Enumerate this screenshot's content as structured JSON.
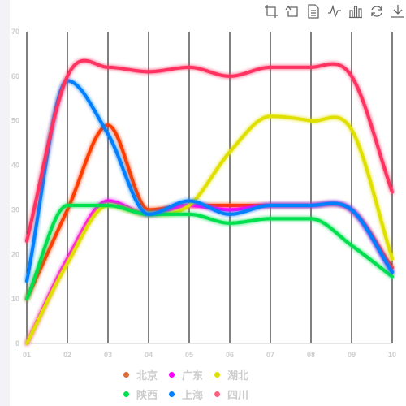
{
  "toolbox": [
    {
      "name": "crop-zoom-icon"
    },
    {
      "name": "zoom-reset-icon"
    },
    {
      "name": "data-view-icon"
    },
    {
      "name": "line-chart-icon"
    },
    {
      "name": "bar-chart-icon"
    },
    {
      "name": "restore-icon"
    },
    {
      "name": "save-image-icon"
    }
  ],
  "chart_data": {
    "type": "line",
    "smooth": true,
    "categories": [
      "01",
      "02",
      "03",
      "04",
      "05",
      "06",
      "07",
      "08",
      "09",
      "10"
    ],
    "ylim": [
      0,
      70
    ],
    "yticks": [
      0,
      10,
      20,
      30,
      40,
      50,
      60,
      70
    ],
    "grid": "vertical",
    "legend_position": "bottom",
    "series": [
      {
        "name": "北京",
        "color": "#ff3c00",
        "values": [
          10,
          30,
          49,
          30,
          31,
          31,
          31,
          31,
          30,
          17
        ]
      },
      {
        "name": "广东",
        "color": "#ff00ff",
        "values": [
          0,
          19,
          32,
          29,
          31,
          30,
          31,
          31,
          30,
          16
        ]
      },
      {
        "name": "湖北",
        "color": "#e0e000",
        "values": [
          0,
          18,
          31,
          29,
          31,
          43,
          51,
          50,
          48,
          19
        ]
      },
      {
        "name": "陕西",
        "color": "#00e050",
        "values": [
          10,
          31,
          31,
          29,
          29,
          27,
          28,
          28,
          22,
          15
        ]
      },
      {
        "name": "上海",
        "color": "#0080ff",
        "values": [
          14,
          59,
          47,
          29,
          32,
          29,
          31,
          31,
          30,
          16
        ]
      },
      {
        "name": "四川",
        "color": "#ff3060",
        "values": [
          23,
          60,
          62,
          61,
          62,
          60,
          62,
          62,
          60,
          34
        ]
      }
    ],
    "legend_dot_colors": [
      "#dd6b35",
      "#ff00ff",
      "#e0e000",
      "#00e050",
      "#0080ff",
      "#ff6080"
    ]
  }
}
